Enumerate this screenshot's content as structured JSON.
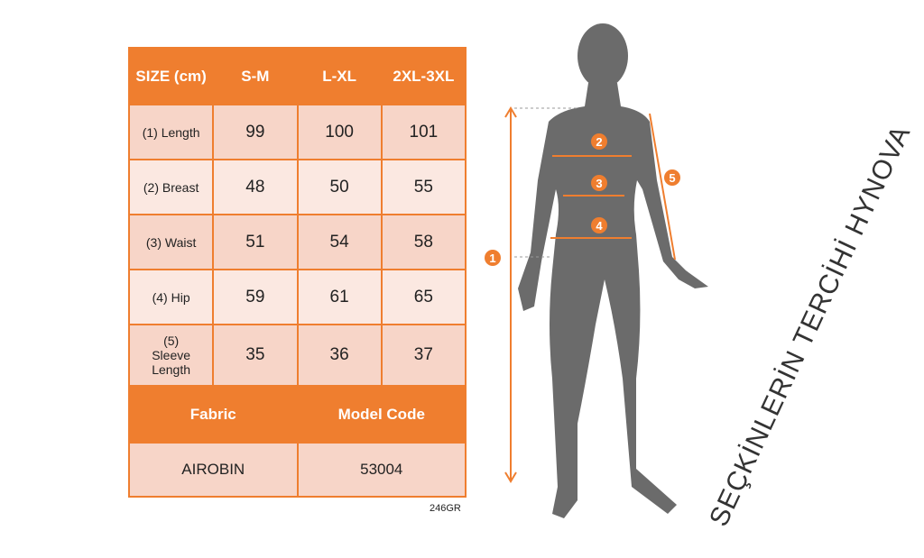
{
  "table": {
    "header": [
      "SIZE (cm)",
      "S-M",
      "L-XL",
      "2XL-3XL"
    ],
    "rows": [
      {
        "label": "(1) Length",
        "values": [
          "99",
          "100",
          "101"
        ]
      },
      {
        "label": "(2) Breast",
        "values": [
          "48",
          "50",
          "55"
        ]
      },
      {
        "label": "(3) Waist",
        "values": [
          "51",
          "54",
          "58"
        ]
      },
      {
        "label": "(4) Hip",
        "values": [
          "59",
          "61",
          "65"
        ]
      },
      {
        "label": "(5) Sleeve Length",
        "values": [
          "35",
          "36",
          "37"
        ]
      }
    ],
    "footer_headers": [
      "Fabric",
      "Model Code"
    ],
    "footer_values": [
      "AIROBIN",
      "53004"
    ]
  },
  "product_code": "246GR",
  "figure": {
    "markers": [
      "1",
      "2",
      "3",
      "4",
      "5"
    ]
  },
  "watermark": "SEÇKİNLERİN TERCİHİ HYNOVA",
  "colors": {
    "accent": "#ef7e2f",
    "silhouette": "#6b6b6b"
  }
}
